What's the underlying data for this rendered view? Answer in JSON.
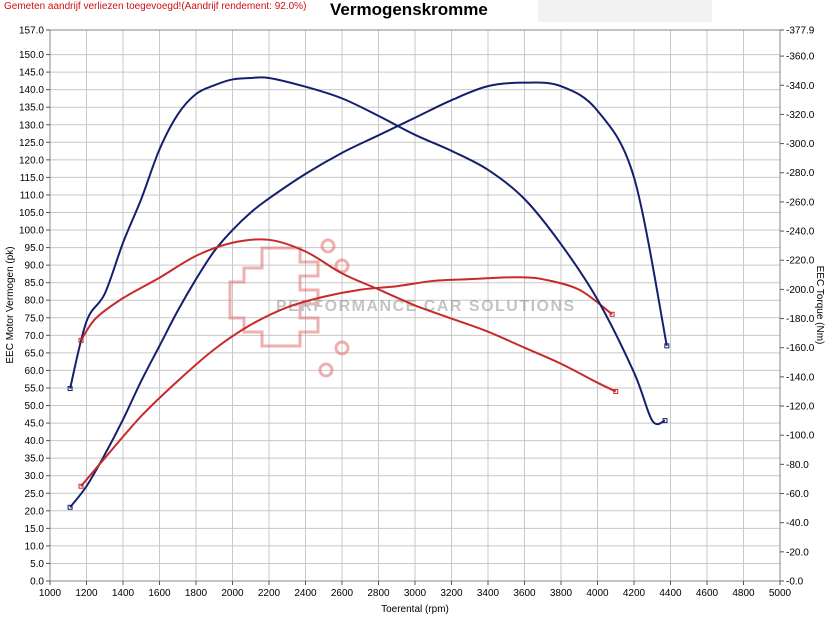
{
  "header": {
    "note": "Gemeten aandrijf verliezen toegevoegd!(Aandrijf rendement: 92.0%)",
    "title": "Vermogenskromme"
  },
  "watermark": {
    "text": "PERFORMANCE CAR SOLUTIONS"
  },
  "colors": {
    "tuned": "#14206e",
    "stock": "#c82a2a",
    "grid": "#c8c8c8",
    "note": "#d01010"
  },
  "chart_data": {
    "type": "line",
    "title": "Vermogenskromme",
    "xlabel": "Toerental (rpm)",
    "ylabel": "EEC Motor Vermogen (pk)",
    "y2label": "EEC Torque (Nm)",
    "xlim": [
      1000,
      5000
    ],
    "ylim": [
      0,
      157
    ],
    "y2lim": [
      0,
      377.9
    ],
    "grid": true,
    "x_ticks": [
      "1000",
      "1200",
      "1400",
      "1600",
      "1800",
      "2000",
      "2200",
      "2400",
      "2600",
      "2800",
      "3000",
      "3200",
      "3400",
      "3600",
      "3800",
      "4000",
      "4200",
      "4400",
      "4600",
      "4800",
      "5000"
    ],
    "y_ticks": [
      "0.0",
      "5.0",
      "10.0",
      "15.0",
      "20.0",
      "25.0",
      "30.0",
      "35.0",
      "40.0",
      "45.0",
      "50.0",
      "55.0",
      "60.0",
      "65.0",
      "70.0",
      "75.0",
      "80.0",
      "85.0",
      "90.0",
      "95.0",
      "100.0",
      "105.0",
      "110.0",
      "115.0",
      "120.0",
      "125.0",
      "130.0",
      "135.0",
      "140.0",
      "145.0",
      "150.0",
      "157.0"
    ],
    "y2_ticks": [
      "0.0",
      "20.0",
      "40.0",
      "60.0",
      "80.0",
      "100.0",
      "120.0",
      "140.0",
      "160.0",
      "180.0",
      "200.0",
      "220.0",
      "240.0",
      "260.0",
      "280.0",
      "300.0",
      "320.0",
      "340.0",
      "360.0",
      "377.9"
    ],
    "series": [
      {
        "axis": "left",
        "color": "#14206e",
        "x": [
          1110,
          1200,
          1300,
          1400,
          1500,
          1600,
          1700,
          1800,
          1900,
          2000,
          2100,
          2200,
          2400,
          2600,
          2800,
          3000,
          3200,
          3400,
          3600,
          3800,
          4000,
          4200,
          4380
        ],
        "y": [
          21,
          27,
          36,
          46,
          57,
          67,
          77,
          86,
          94,
          100,
          105,
          109,
          116,
          122,
          127,
          132,
          137,
          141,
          142,
          141,
          134,
          115,
          67
        ]
      },
      {
        "axis": "left",
        "color": "#c82a2a",
        "x": [
          1170,
          1300,
          1500,
          1700,
          1900,
          2100,
          2300,
          2500,
          2700,
          2900,
          3100,
          3300,
          3500,
          3600,
          3700,
          3900,
          4080
        ],
        "y": [
          27,
          35,
          47,
          57,
          66,
          73,
          78,
          81,
          83,
          84,
          85.5,
          86,
          86.5,
          86.5,
          86,
          83,
          76
        ]
      },
      {
        "axis": "right",
        "color": "#14206e",
        "x": [
          1110,
          1200,
          1300,
          1400,
          1500,
          1600,
          1700,
          1800,
          1900,
          2000,
          2100,
          2200,
          2400,
          2600,
          2800,
          3000,
          3200,
          3400,
          3600,
          3800,
          4000,
          4200,
          4300,
          4370
        ],
        "y": [
          132,
          178,
          197,
          232,
          262,
          296,
          320,
          334,
          340,
          344,
          345,
          345,
          339,
          331,
          319,
          306,
          295,
          282,
          262,
          231,
          193,
          143,
          110,
          110
        ]
      },
      {
        "axis": "right",
        "color": "#c82a2a",
        "x": [
          1170,
          1250,
          1400,
          1600,
          1800,
          2000,
          2200,
          2400,
          2600,
          2800,
          3000,
          3200,
          3400,
          3600,
          3800,
          4000,
          4100
        ],
        "y": [
          165,
          180,
          194,
          208,
          223,
          232,
          234,
          226,
          211,
          200,
          189,
          180,
          171,
          160,
          149,
          136,
          130
        ]
      }
    ]
  }
}
